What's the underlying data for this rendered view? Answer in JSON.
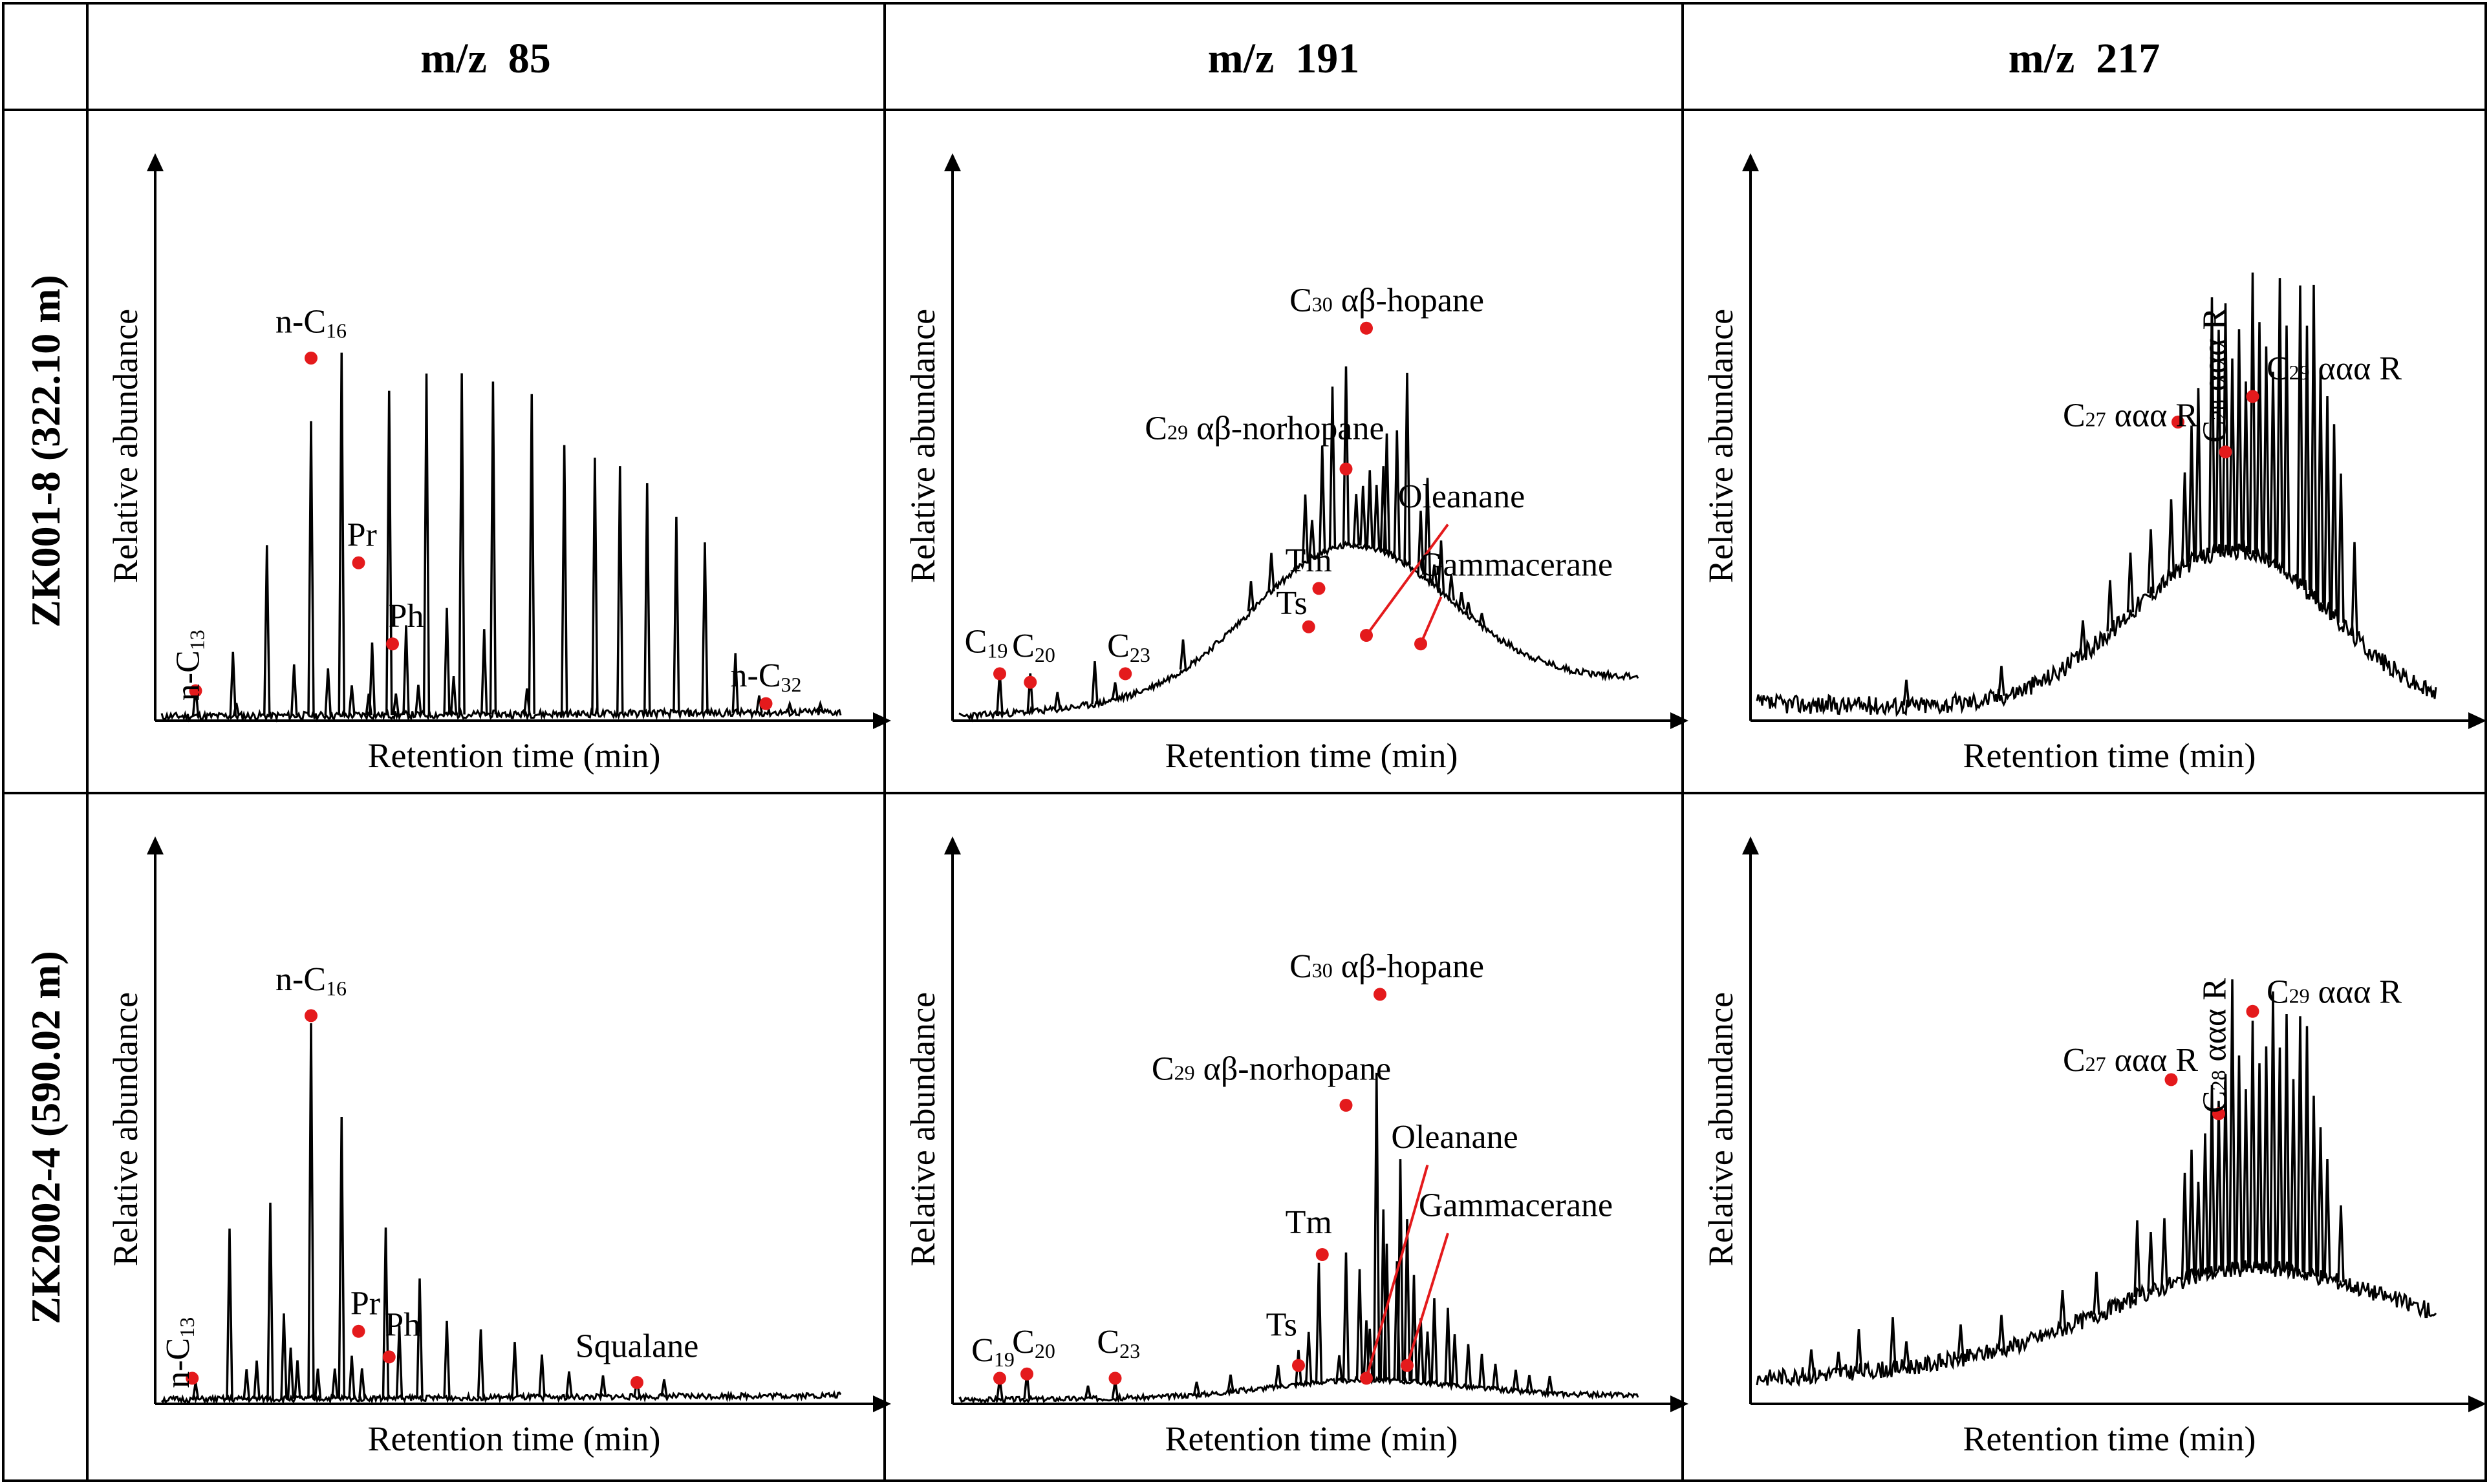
{
  "header": {
    "columns": [
      {
        "label": "m/z  85"
      },
      {
        "label": "m/z  191"
      },
      {
        "label": "m/z  217"
      }
    ],
    "rows": [
      {
        "label": "ZK001-8 (322.10 m)"
      },
      {
        "label": "ZK2002-4 (590.02 m)"
      }
    ]
  },
  "axes": {
    "xlabel": "Retention time (min)",
    "ylabel": "Relative abundance"
  },
  "colors": {
    "trace": "#000000",
    "marker": "#e41a1c",
    "leader": "#e41a1c",
    "grid": "#000000"
  },
  "chart_data": [
    {
      "type": "line",
      "title": "m/z  85",
      "sample": "ZK001-8 (322.10 m)",
      "xlabel": "Retention time (min)",
      "ylabel": "Relative abundance",
      "xlim": [
        0,
        100
      ],
      "ylim": [
        0,
        100
      ],
      "baseline": {
        "start": 1,
        "end": 2,
        "noise": 0.9,
        "seed": 11
      },
      "peaks": [
        [
          5,
          7
        ],
        [
          10.5,
          15
        ],
        [
          11,
          3
        ],
        [
          15.5,
          40
        ],
        [
          19.5,
          12
        ],
        [
          22,
          69
        ],
        [
          24.5,
          11
        ],
        [
          26.5,
          85
        ],
        [
          28,
          7
        ],
        [
          30.5,
          5
        ],
        [
          31,
          17
        ],
        [
          33.5,
          76
        ],
        [
          34.5,
          5
        ],
        [
          36,
          21
        ],
        [
          37.8,
          7
        ],
        [
          39,
          80
        ],
        [
          42,
          25
        ],
        [
          43,
          9
        ],
        [
          44.2,
          80
        ],
        [
          47.5,
          20
        ],
        [
          48.8,
          78
        ],
        [
          53.8,
          6
        ],
        [
          54.5,
          75
        ],
        [
          59.3,
          63
        ],
        [
          63.8,
          60
        ],
        [
          67.5,
          58
        ],
        [
          71.5,
          54
        ],
        [
          75.8,
          46
        ],
        [
          80,
          40
        ],
        [
          84.5,
          14
        ],
        [
          88,
          4
        ],
        [
          92.5,
          2
        ],
        [
          97,
          2
        ]
      ],
      "labels": [
        {
          "text": "n-C",
          "sub": "13",
          "at": [
            5,
            7
          ],
          "tx": 5.5,
          "ty": 13,
          "rot": -90,
          "anchor": "middle"
        },
        {
          "text": "n-C",
          "sub": "16",
          "at": [
            22,
            85
          ],
          "tx": 22,
          "ty": 91,
          "anchor": "middle"
        },
        {
          "text": "Pr",
          "at": [
            29,
            37
          ],
          "tx": 29.5,
          "ty": 41,
          "anchor": "middle"
        },
        {
          "text": "Ph",
          "at": [
            34,
            18
          ],
          "tx": 36,
          "ty": 22,
          "anchor": "middle"
        },
        {
          "text": "n-C",
          "sub": "32",
          "at": [
            89,
            4
          ],
          "tx": 89,
          "ty": 8,
          "anchor": "middle"
        }
      ]
    },
    {
      "type": "line",
      "title": "m/z  191",
      "sample": "ZK001-8 (322.10 m)",
      "xlabel": "Retention time (min)",
      "ylabel": "Relative abundance",
      "xlim": [
        0,
        100
      ],
      "ylim": [
        0,
        100
      ],
      "baseline": {
        "start": 1,
        "end": 10,
        "noise": 0.8,
        "seed": 23,
        "rise": [
          [
            55,
            22
          ],
          [
            62,
            14
          ]
        ]
      },
      "peaks": [
        [
          6,
          10
        ],
        [
          10.5,
          9
        ],
        [
          14.5,
          4
        ],
        [
          20,
          10
        ],
        [
          23,
          4
        ],
        [
          33,
          7
        ],
        [
          43,
          7
        ],
        [
          46,
          9
        ],
        [
          51,
          16
        ],
        [
          52,
          9
        ],
        [
          53.5,
          25
        ],
        [
          55,
          38
        ],
        [
          57,
          42
        ],
        [
          58.5,
          12
        ],
        [
          59.5,
          14
        ],
        [
          60.5,
          18
        ],
        [
          61.5,
          15
        ],
        [
          62.5,
          20
        ],
        [
          63,
          28
        ],
        [
          64.5,
          30
        ],
        [
          66,
          45
        ],
        [
          68,
          15
        ],
        [
          69,
          24
        ],
        [
          70,
          5
        ],
        [
          71,
          12
        ],
        [
          72.5,
          6
        ],
        [
          74,
          4
        ],
        [
          75,
          3
        ],
        [
          77,
          3
        ]
      ],
      "labels": [
        {
          "text": "C",
          "sub": "19",
          "at": [
            6,
            11
          ],
          "tx": 4,
          "ty": 16,
          "anchor": "middle"
        },
        {
          "text": "C",
          "sub": "20",
          "at": [
            10.5,
            9
          ],
          "tx": 11,
          "ty": 15,
          "anchor": "middle"
        },
        {
          "text": "C",
          "sub": "23",
          "at": [
            24.5,
            11
          ],
          "tx": 25,
          "ty": 15,
          "anchor": "middle"
        },
        {
          "text": "Ts",
          "at": [
            51.5,
            22
          ],
          "tx": 49,
          "ty": 25,
          "anchor": "middle"
        },
        {
          "text": "Tm",
          "at": [
            53,
            31
          ],
          "tx": 51.5,
          "ty": 35,
          "anchor": "middle"
        },
        {
          "text": "C",
          "sub": "29",
          "pre": true,
          "tail": " αβ-norhopane",
          "at": [
            57,
            59
          ],
          "tx": 45,
          "ty": 66,
          "anchor": "middle"
        },
        {
          "text": "C",
          "sub": "30",
          "pre": true,
          "tail": " αβ-hopane",
          "at": [
            60,
            92
          ],
          "tx": 63,
          "ty": 96,
          "anchor": "middle"
        },
        {
          "text": "Oleanane",
          "at": [
            60,
            20
          ],
          "tx": 74,
          "ty": 50,
          "anchor": "middle",
          "leader": [
            72,
            46
          ]
        },
        {
          "text": "Gammacerane",
          "at": [
            68,
            18
          ],
          "tx": 82,
          "ty": 34,
          "anchor": "middle",
          "leader": [
            71,
            29
          ]
        }
      ]
    },
    {
      "type": "line",
      "title": "m/z  217",
      "sample": "ZK001-8 (322.10 m)",
      "xlabel": "Retention time (min)",
      "ylabel": "Relative abundance",
      "xlim": [
        0,
        100
      ],
      "ylim": [
        0,
        100
      ],
      "baseline": {
        "start": 4,
        "end": 1,
        "noise": 2.2,
        "seed": 37,
        "rise": [
          [
            70,
            38
          ]
        ],
        "width": 15
      },
      "peaks": [
        [
          22,
          6
        ],
        [
          36,
          7
        ],
        [
          48,
          8
        ],
        [
          52,
          12
        ],
        [
          55,
          14
        ],
        [
          58,
          15
        ],
        [
          61,
          18
        ],
        [
          63,
          22
        ],
        [
          64,
          32
        ],
        [
          65,
          40
        ],
        [
          67,
          60
        ],
        [
          68,
          52
        ],
        [
          69,
          58
        ],
        [
          70,
          45
        ],
        [
          71,
          52
        ],
        [
          72,
          40
        ],
        [
          73,
          66
        ],
        [
          74,
          55
        ],
        [
          75,
          50
        ],
        [
          76,
          45
        ],
        [
          77,
          68
        ],
        [
          78,
          58
        ],
        [
          80,
          70
        ],
        [
          81,
          62
        ],
        [
          82,
          73
        ],
        [
          83,
          55
        ],
        [
          84,
          50
        ],
        [
          85,
          45
        ],
        [
          86,
          35
        ],
        [
          88,
          22
        ]
      ],
      "labels": [
        {
          "text": "C",
          "sub": "27",
          "pre": true,
          "tail": " ααα R",
          "at": [
            62,
            70
          ],
          "tx": 55,
          "ty": 69,
          "anchor": "middle"
        },
        {
          "text": "C",
          "sub": "28",
          "pre": true,
          "tail": " ααα R",
          "at": [
            69,
            63
          ],
          "tx": 69,
          "ty": 81,
          "rot": -90,
          "anchor": "middle"
        },
        {
          "text": "C",
          "sub": "29",
          "pre": true,
          "tail": " ααα R",
          "at": [
            73,
            76
          ],
          "tx": 85,
          "ty": 80,
          "anchor": "middle"
        }
      ]
    },
    {
      "type": "line",
      "title": "m/z  85",
      "sample": "ZK2002-4 (590.02 m)",
      "xlabel": "Retention time (min)",
      "ylabel": "Relative abundance",
      "xlim": [
        0,
        100
      ],
      "ylim": [
        0,
        100
      ],
      "baseline": {
        "start": 1,
        "end": 2,
        "noise": 0.7,
        "seed": 51
      },
      "peaks": [
        [
          5,
          4
        ],
        [
          10,
          40
        ],
        [
          12.5,
          7
        ],
        [
          14,
          9
        ],
        [
          16,
          46
        ],
        [
          18,
          20
        ],
        [
          19,
          12
        ],
        [
          20,
          9
        ],
        [
          22,
          88
        ],
        [
          23,
          7
        ],
        [
          25.5,
          7
        ],
        [
          26.5,
          66
        ],
        [
          28,
          10
        ],
        [
          29.5,
          7
        ],
        [
          33,
          40
        ],
        [
          35,
          17
        ],
        [
          38,
          28
        ],
        [
          42,
          18
        ],
        [
          47,
          16
        ],
        [
          52,
          13
        ],
        [
          56,
          10
        ],
        [
          60,
          6
        ],
        [
          65,
          5
        ],
        [
          70,
          4
        ],
        [
          74,
          4
        ]
      ],
      "labels": [
        {
          "text": "n-C",
          "sub": "13",
          "at": [
            4.5,
            6
          ],
          "tx": 4,
          "ty": 12,
          "rot": -90,
          "anchor": "middle"
        },
        {
          "text": "n-C",
          "sub": "16",
          "at": [
            22,
            91
          ],
          "tx": 22,
          "ty": 97,
          "anchor": "middle"
        },
        {
          "text": "Pr",
          "at": [
            29,
            17
          ],
          "tx": 30,
          "ty": 21,
          "anchor": "middle"
        },
        {
          "text": "Ph",
          "at": [
            33.5,
            11
          ],
          "tx": 35.5,
          "ty": 16,
          "anchor": "middle"
        },
        {
          "text": "Squalane",
          "at": [
            70,
            5
          ],
          "tx": 70,
          "ty": 11,
          "anchor": "middle"
        }
      ]
    },
    {
      "type": "line",
      "title": "m/z  191",
      "sample": "ZK2002-4 (590.02 m)",
      "xlabel": "Retention time (min)",
      "ylabel": "Relative abundance",
      "xlim": [
        0,
        100
      ],
      "ylim": [
        0,
        100
      ],
      "baseline": {
        "start": 1,
        "end": 2,
        "noise": 0.6,
        "seed": 67,
        "rise": [
          [
            60,
            4
          ]
        ]
      },
      "peaks": [
        [
          6,
          5
        ],
        [
          10,
          6
        ],
        [
          19,
          3
        ],
        [
          23,
          4
        ],
        [
          35,
          3
        ],
        [
          40,
          4
        ],
        [
          47,
          5
        ],
        [
          50,
          8
        ],
        [
          51.5,
          12
        ],
        [
          53,
          28
        ],
        [
          56,
          6
        ],
        [
          57,
          30
        ],
        [
          59,
          26
        ],
        [
          60,
          14
        ],
        [
          60.5,
          12
        ],
        [
          61.5,
          72
        ],
        [
          62.5,
          40
        ],
        [
          63,
          32
        ],
        [
          64.5,
          28
        ],
        [
          65,
          52
        ],
        [
          66,
          38
        ],
        [
          67,
          25
        ],
        [
          68,
          15
        ],
        [
          69,
          12
        ],
        [
          70,
          20
        ],
        [
          72,
          18
        ],
        [
          73,
          12
        ],
        [
          75,
          10
        ],
        [
          77,
          8
        ],
        [
          79,
          6
        ],
        [
          82,
          5
        ],
        [
          84,
          4
        ],
        [
          87,
          4
        ]
      ],
      "labels": [
        {
          "text": "C",
          "sub": "19",
          "at": [
            6,
            6
          ],
          "tx": 5,
          "ty": 10,
          "anchor": "middle"
        },
        {
          "text": "C",
          "sub": "20",
          "at": [
            10,
            7
          ],
          "tx": 11,
          "ty": 12,
          "anchor": "middle"
        },
        {
          "text": "C",
          "sub": "23",
          "at": [
            23,
            6
          ],
          "tx": 23.5,
          "ty": 12,
          "anchor": "middle"
        },
        {
          "text": "Ts",
          "at": [
            50,
            9
          ],
          "tx": 47.5,
          "ty": 16,
          "anchor": "middle"
        },
        {
          "text": "Tm",
          "at": [
            53.5,
            35
          ],
          "tx": 51.5,
          "ty": 40,
          "anchor": "middle"
        },
        {
          "text": "C",
          "sub": "29",
          "pre": true,
          "tail": " αβ-norhopane",
          "at": [
            57,
            70
          ],
          "tx": 46,
          "ty": 76,
          "anchor": "middle"
        },
        {
          "text": "C",
          "sub": "30",
          "pre": true,
          "tail": " αβ-hopane",
          "at": [
            62,
            96
          ],
          "tx": 63,
          "ty": 100,
          "anchor": "middle"
        },
        {
          "text": "Oleanane",
          "at": [
            60,
            6
          ],
          "tx": 73,
          "ty": 60,
          "anchor": "middle",
          "leader": [
            69,
            56
          ]
        },
        {
          "text": "Gammacerane",
          "at": [
            66,
            9
          ],
          "tx": 82,
          "ty": 44,
          "anchor": "middle",
          "leader": [
            72,
            40
          ]
        }
      ]
    },
    {
      "type": "line",
      "title": "m/z  217",
      "sample": "ZK2002-4 (590.02 m)",
      "xlabel": "Retention time (min)",
      "ylabel": "Relative abundance",
      "xlim": [
        0,
        100
      ],
      "ylim": [
        0,
        100
      ],
      "baseline": {
        "start": 6,
        "end": 14,
        "noise": 2.0,
        "seed": 83,
        "rise": [
          [
            72,
            20
          ]
        ],
        "width": 20
      },
      "peaks": [
        [
          8,
          6
        ],
        [
          12,
          5
        ],
        [
          15,
          10
        ],
        [
          20,
          12
        ],
        [
          22,
          6
        ],
        [
          30,
          8
        ],
        [
          36,
          8
        ],
        [
          45,
          9
        ],
        [
          50,
          10
        ],
        [
          56,
          18
        ],
        [
          58,
          14
        ],
        [
          60,
          16
        ],
        [
          63,
          25
        ],
        [
          64,
          30
        ],
        [
          65,
          22
        ],
        [
          66,
          33
        ],
        [
          67,
          44
        ],
        [
          68,
          40
        ],
        [
          69,
          46
        ],
        [
          70,
          68
        ],
        [
          71,
          50
        ],
        [
          72,
          42
        ],
        [
          73,
          58
        ],
        [
          74,
          48
        ],
        [
          75,
          52
        ],
        [
          76,
          65
        ],
        [
          77,
          52
        ],
        [
          78,
          60
        ],
        [
          79,
          45
        ],
        [
          80,
          60
        ],
        [
          81,
          58
        ],
        [
          82,
          42
        ],
        [
          83,
          35
        ],
        [
          84,
          28
        ],
        [
          86,
          18
        ]
      ],
      "labels": [
        {
          "text": "C",
          "sub": "27",
          "pre": true,
          "tail": " ααα R",
          "at": [
            61,
            76
          ],
          "tx": 55,
          "ty": 78,
          "anchor": "middle"
        },
        {
          "text": "C",
          "sub": "28",
          "pre": true,
          "tail": " ααα R",
          "at": [
            68,
            68
          ],
          "tx": 69,
          "ty": 84,
          "rot": -90,
          "anchor": "middle"
        },
        {
          "text": "C",
          "sub": "29",
          "pre": true,
          "tail": " ααα R",
          "at": [
            73,
            92
          ],
          "tx": 85,
          "ty": 94,
          "anchor": "middle"
        }
      ]
    }
  ]
}
